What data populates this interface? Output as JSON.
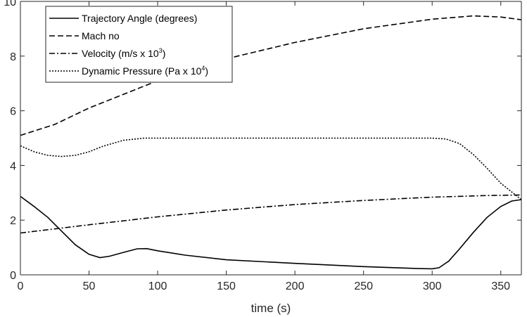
{
  "chart_data": {
    "type": "line",
    "title": "",
    "xlabel": "time (s)",
    "ylabel": "",
    "xlim": [
      0,
      365
    ],
    "ylim": [
      0,
      10
    ],
    "xticks": [
      0,
      50,
      100,
      150,
      200,
      250,
      300,
      350
    ],
    "yticks": [
      0,
      2,
      4,
      6,
      8,
      10
    ],
    "grid": false,
    "legend_position": "top-left",
    "series": [
      {
        "name": "Trajectory Angle (degrees)",
        "style": "solid",
        "points": [
          [
            0,
            2.87
          ],
          [
            10,
            2.5
          ],
          [
            20,
            2.1
          ],
          [
            30,
            1.6
          ],
          [
            40,
            1.1
          ],
          [
            50,
            0.75
          ],
          [
            58,
            0.63
          ],
          [
            65,
            0.68
          ],
          [
            75,
            0.82
          ],
          [
            85,
            0.95
          ],
          [
            92,
            0.96
          ],
          [
            100,
            0.88
          ],
          [
            120,
            0.72
          ],
          [
            150,
            0.55
          ],
          [
            200,
            0.42
          ],
          [
            250,
            0.3
          ],
          [
            290,
            0.23
          ],
          [
            300,
            0.22
          ],
          [
            305,
            0.26
          ],
          [
            312,
            0.5
          ],
          [
            320,
            0.95
          ],
          [
            330,
            1.55
          ],
          [
            340,
            2.1
          ],
          [
            350,
            2.5
          ],
          [
            358,
            2.7
          ],
          [
            365,
            2.75
          ]
        ]
      },
      {
        "name": "Mach no",
        "style": "dashed",
        "points": [
          [
            0,
            5.1
          ],
          [
            25,
            5.5
          ],
          [
            50,
            6.1
          ],
          [
            75,
            6.6
          ],
          [
            100,
            7.1
          ],
          [
            150,
            7.9
          ],
          [
            200,
            8.5
          ],
          [
            250,
            9.0
          ],
          [
            300,
            9.35
          ],
          [
            330,
            9.47
          ],
          [
            350,
            9.43
          ],
          [
            365,
            9.33
          ]
        ]
      },
      {
        "name": "Velocity (m/s x 10^3)",
        "label_text": "Velocity (m/s x 10",
        "label_exp": "3",
        "label_tail": ")",
        "style": "dashdot",
        "points": [
          [
            0,
            1.53
          ],
          [
            50,
            1.83
          ],
          [
            100,
            2.12
          ],
          [
            150,
            2.37
          ],
          [
            200,
            2.57
          ],
          [
            250,
            2.72
          ],
          [
            300,
            2.84
          ],
          [
            340,
            2.9
          ],
          [
            365,
            2.92
          ]
        ]
      },
      {
        "name": "Dynamic Pressure (Pa x 10^4)",
        "label_text": "Dynamic Pressure (Pa x 10",
        "label_exp": "4",
        "label_tail": ")",
        "style": "dotted",
        "points": [
          [
            0,
            4.72
          ],
          [
            10,
            4.5
          ],
          [
            20,
            4.37
          ],
          [
            30,
            4.33
          ],
          [
            40,
            4.37
          ],
          [
            50,
            4.5
          ],
          [
            60,
            4.7
          ],
          [
            75,
            4.92
          ],
          [
            90,
            5.0
          ],
          [
            150,
            5.0
          ],
          [
            200,
            5.0
          ],
          [
            250,
            5.0
          ],
          [
            300,
            5.0
          ],
          [
            310,
            4.97
          ],
          [
            320,
            4.8
          ],
          [
            330,
            4.4
          ],
          [
            340,
            3.9
          ],
          [
            350,
            3.35
          ],
          [
            360,
            2.95
          ],
          [
            365,
            2.75
          ]
        ]
      }
    ]
  }
}
